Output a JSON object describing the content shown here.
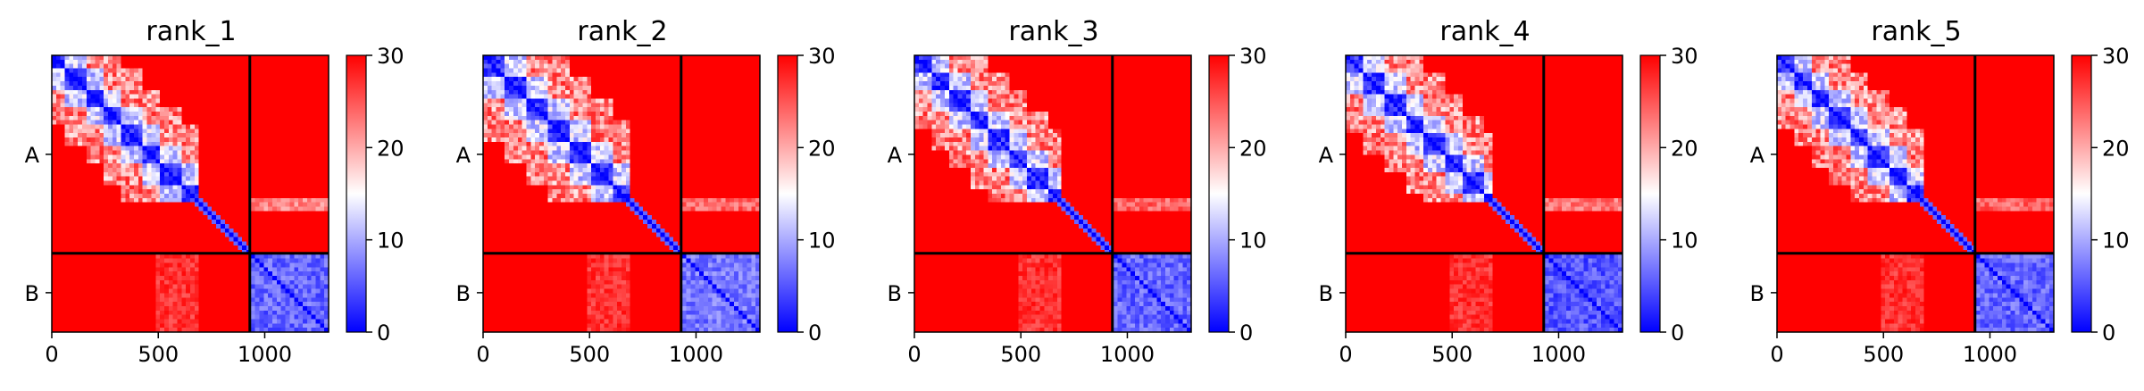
{
  "figure": {
    "colormap": [
      "#0000ff",
      "#ffffff",
      "#ff0000"
    ],
    "chain_boundary": 930,
    "seq_length": 1300
  },
  "chart_data": [
    {
      "type": "heatmap",
      "title": "rank_1",
      "xticks": [
        "0",
        "500",
        "1000"
      ],
      "xtick_values": [
        0,
        500,
        1000
      ],
      "xlim": [
        0,
        1300
      ],
      "ylim": [
        1300,
        0
      ],
      "ylabels": [
        "A",
        "B"
      ],
      "ylabel_values": [
        465,
        1115
      ],
      "chains": [
        {
          "name": "A",
          "start": 0,
          "end": 930
        },
        {
          "name": "B",
          "start": 930,
          "end": 1300
        }
      ],
      "colorbar": {
        "ticks": [
          "0",
          "10",
          "20",
          "30"
        ],
        "tick_values": [
          0,
          10,
          20,
          30
        ],
        "range": [
          0,
          30
        ]
      },
      "domains": [
        [
          0,
          70
        ],
        [
          70,
          160
        ],
        [
          160,
          250
        ],
        [
          250,
          330
        ],
        [
          330,
          420
        ],
        [
          420,
          510
        ],
        [
          510,
          600
        ],
        [
          600,
          690
        ]
      ],
      "block_b_level": 6,
      "strip_a_level": 22
    },
    {
      "type": "heatmap",
      "title": "rank_2",
      "xticks": [
        "0",
        "500",
        "1000"
      ],
      "xtick_values": [
        0,
        500,
        1000
      ],
      "xlim": [
        0,
        1300
      ],
      "ylim": [
        1300,
        0
      ],
      "ylabels": [
        "A",
        "B"
      ],
      "ylabel_values": [
        465,
        1115
      ],
      "chains": [
        {
          "name": "A",
          "start": 0,
          "end": 930
        },
        {
          "name": "B",
          "start": 930,
          "end": 1300
        }
      ],
      "colorbar": {
        "ticks": [
          "0",
          "10",
          "20",
          "30"
        ],
        "tick_values": [
          0,
          10,
          20,
          30
        ],
        "range": [
          0,
          30
        ]
      },
      "domains": [
        [
          0,
          100
        ],
        [
          100,
          200
        ],
        [
          200,
          300
        ],
        [
          300,
          400
        ],
        [
          400,
          500
        ],
        [
          500,
          600
        ],
        [
          600,
          700
        ]
      ],
      "block_b_level": 7,
      "strip_a_level": 24
    },
    {
      "type": "heatmap",
      "title": "rank_3",
      "xticks": [
        "0",
        "500",
        "1000"
      ],
      "xtick_values": [
        0,
        500,
        1000
      ],
      "xlim": [
        0,
        1300
      ],
      "ylim": [
        1300,
        0
      ],
      "ylabels": [
        "A",
        "B"
      ],
      "ylabel_values": [
        465,
        1115
      ],
      "chains": [
        {
          "name": "A",
          "start": 0,
          "end": 930
        },
        {
          "name": "B",
          "start": 930,
          "end": 1300
        }
      ],
      "colorbar": {
        "ticks": [
          "0",
          "10",
          "20",
          "30"
        ],
        "tick_values": [
          0,
          10,
          20,
          30
        ],
        "range": [
          0,
          30
        ]
      },
      "domains": [
        [
          0,
          80
        ],
        [
          80,
          170
        ],
        [
          170,
          260
        ],
        [
          260,
          350
        ],
        [
          350,
          440
        ],
        [
          440,
          530
        ],
        [
          530,
          620
        ],
        [
          620,
          700
        ]
      ],
      "block_b_level": 6,
      "strip_a_level": 24
    },
    {
      "type": "heatmap",
      "title": "rank_4",
      "xticks": [
        "0",
        "500",
        "1000"
      ],
      "xtick_values": [
        0,
        500,
        1000
      ],
      "xlim": [
        0,
        1300
      ],
      "ylim": [
        1300,
        0
      ],
      "ylabels": [
        "A",
        "B"
      ],
      "ylabel_values": [
        465,
        1115
      ],
      "chains": [
        {
          "name": "A",
          "start": 0,
          "end": 930
        },
        {
          "name": "B",
          "start": 930,
          "end": 1300
        }
      ],
      "colorbar": {
        "ticks": [
          "0",
          "10",
          "20",
          "30"
        ],
        "tick_values": [
          0,
          10,
          20,
          30
        ],
        "range": [
          0,
          30
        ]
      },
      "domains": [
        [
          0,
          90
        ],
        [
          90,
          180
        ],
        [
          180,
          280
        ],
        [
          280,
          370
        ],
        [
          370,
          460
        ],
        [
          460,
          550
        ],
        [
          550,
          640
        ],
        [
          640,
          700
        ]
      ],
      "block_b_level": 5,
      "strip_a_level": 23
    },
    {
      "type": "heatmap",
      "title": "rank_5",
      "xticks": [
        "0",
        "500",
        "1000"
      ],
      "xtick_values": [
        0,
        500,
        1000
      ],
      "xlim": [
        0,
        1300
      ],
      "ylim": [
        1300,
        0
      ],
      "ylabels": [
        "A",
        "B"
      ],
      "ylabel_values": [
        465,
        1115
      ],
      "chains": [
        {
          "name": "A",
          "start": 0,
          "end": 930
        },
        {
          "name": "B",
          "start": 930,
          "end": 1300
        }
      ],
      "colorbar": {
        "ticks": [
          "0",
          "10",
          "20",
          "30"
        ],
        "tick_values": [
          0,
          10,
          20,
          30
        ],
        "range": [
          0,
          30
        ]
      },
      "domains": [
        [
          0,
          80
        ],
        [
          80,
          160
        ],
        [
          160,
          250
        ],
        [
          250,
          340
        ],
        [
          340,
          430
        ],
        [
          430,
          520
        ],
        [
          520,
          610
        ],
        [
          610,
          700
        ]
      ],
      "block_b_level": 6,
      "strip_a_level": 24
    }
  ]
}
